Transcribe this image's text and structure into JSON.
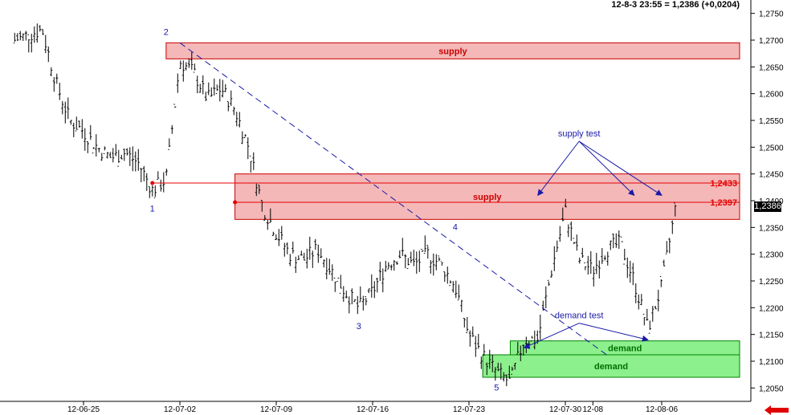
{
  "header": {
    "quote": "12-8-3 23:55 = 1,2386 (+0,0204)"
  },
  "last_price_label": "1,2386",
  "colors": {
    "supply_fill": "#f4b8b8",
    "supply_border": "#cc0000",
    "demand_fill": "#8cf08c",
    "demand_border": "#008000",
    "annotation": "#1a1aa8",
    "level": "#e60000",
    "bars": "#000000"
  },
  "chart_data": {
    "type": "ohlc",
    "title": "",
    "xlabel": "",
    "ylabel": "",
    "ylim": [
      1.2025,
      1.2775
    ],
    "y_ticks": [
      "1,2050",
      "1,2100",
      "1,2150",
      "1,2200",
      "1,2250",
      "1,2300",
      "1,2350",
      "1,2400",
      "1,2450",
      "1,2500",
      "1,2550",
      "1,2600",
      "1,2650",
      "1,2700",
      "1,2750"
    ],
    "x_ticks": [
      "12-06-25",
      "12-07-02",
      "12-07-09",
      "12-07-16",
      "12-07-23",
      "12-07-30",
      "12-08-06",
      "12-08"
    ],
    "path": [
      [
        "12-06-20",
        1.27
      ],
      [
        "12-06-21",
        1.271
      ],
      [
        "12-06-22",
        1.272
      ],
      [
        "12-06-23",
        1.262
      ],
      [
        "12-06-24",
        1.255
      ],
      [
        "12-06-25",
        1.253
      ],
      [
        "12-06-26",
        1.25
      ],
      [
        "12-06-27",
        1.248
      ],
      [
        "12-06-28",
        1.249
      ],
      [
        "12-06-29",
        1.247
      ],
      [
        "12-06-30",
        1.242
      ],
      [
        "12-07-01",
        1.244
      ],
      [
        "12-07-02",
        1.266
      ],
      [
        "12-07-03",
        1.264
      ],
      [
        "12-07-04",
        1.259
      ],
      [
        "12-07-05",
        1.261
      ],
      [
        "12-07-06",
        1.257
      ],
      [
        "12-07-07",
        1.25
      ],
      [
        "12-07-08",
        1.239
      ],
      [
        "12-07-09",
        1.234
      ],
      [
        "12-07-10",
        1.23
      ],
      [
        "12-07-11",
        1.229
      ],
      [
        "12-07-12",
        1.231
      ],
      [
        "12-07-13",
        1.227
      ],
      [
        "12-07-14",
        1.223
      ],
      [
        "12-07-15",
        1.22
      ],
      [
        "12-07-16",
        1.223
      ],
      [
        "12-07-17",
        1.228
      ],
      [
        "12-07-18",
        1.23
      ],
      [
        "12-07-19",
        1.228
      ],
      [
        "12-07-20",
        1.23
      ],
      [
        "12-07-21",
        1.228
      ],
      [
        "12-07-22",
        1.224
      ],
      [
        "12-07-23",
        1.215
      ],
      [
        "12-07-24",
        1.211
      ],
      [
        "12-07-25",
        1.208
      ],
      [
        "12-07-26",
        1.206
      ],
      [
        "12-07-27",
        1.214
      ],
      [
        "12-07-28",
        1.214
      ],
      [
        "12-07-29",
        1.227
      ],
      [
        "12-07-30",
        1.238
      ],
      [
        "12-07-31",
        1.229
      ],
      [
        "12-08-01",
        1.227
      ],
      [
        "12-08-02",
        1.231
      ],
      [
        "12-08-03",
        1.232
      ],
      [
        "12-08-04",
        1.225
      ],
      [
        "12-08-05",
        1.216
      ],
      [
        "12-08-06",
        1.224
      ],
      [
        "12-08-07",
        1.2386
      ]
    ],
    "zones": [
      {
        "type": "supply",
        "label": "supply",
        "from": "12-07-01",
        "top": 1.2695,
        "bottom": 1.2665
      },
      {
        "type": "supply",
        "label": "supply",
        "from": "12-07-06",
        "top": 1.245,
        "bottom": 1.2365
      },
      {
        "type": "demand",
        "label": "demand",
        "from": "12-07-26",
        "top": 1.2138,
        "bottom": 1.2112
      },
      {
        "type": "demand",
        "label": "demand",
        "from": "12-07-24",
        "top": 1.2112,
        "bottom": 1.207
      }
    ],
    "levels": [
      {
        "label": "1,2433",
        "value": 1.2433,
        "from": "12-06-30"
      },
      {
        "label": "1,2397",
        "value": 1.2397,
        "from": "12-07-06"
      }
    ],
    "trendline": {
      "from": [
        "12-07-02",
        1.2695
      ],
      "to": [
        "12-08-02",
        1.2112
      ]
    },
    "wave_labels": [
      {
        "label": "1",
        "x": "12-06-30",
        "y": 1.238
      },
      {
        "label": "2",
        "x": "12-07-01",
        "y": 1.271
      },
      {
        "label": "3",
        "x": "12-07-15",
        "y": 1.216
      },
      {
        "label": "4",
        "x": "12-07-22",
        "y": 1.2345
      },
      {
        "label": "5",
        "x": "12-07-25",
        "y": 1.2045
      }
    ],
    "annotations": [
      {
        "text": "supply test",
        "x": "12-07-31",
        "y": 1.252,
        "arrows": [
          [
            "12-07-28",
            1.241
          ],
          [
            "12-08-04",
            1.241
          ],
          [
            "12-08-06",
            1.241
          ]
        ]
      },
      {
        "text": "demand test",
        "x": "12-07-31",
        "y": 1.218,
        "arrows": [
          [
            "12-07-27",
            1.2125
          ],
          [
            "12-08-05",
            1.214
          ]
        ]
      }
    ]
  }
}
